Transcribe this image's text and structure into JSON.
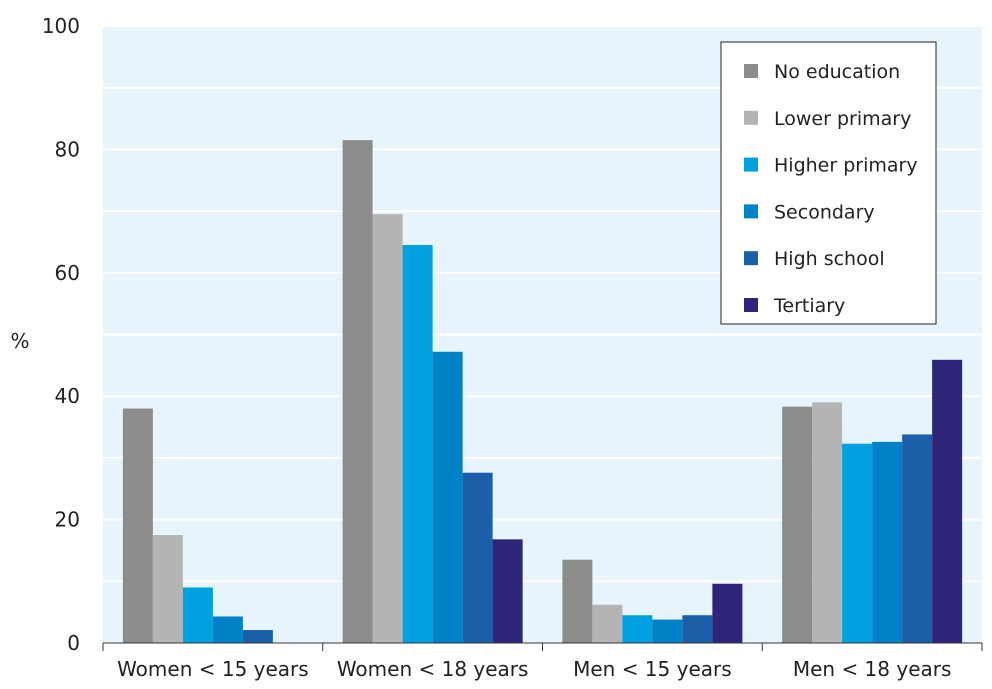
{
  "chart_data": {
    "type": "bar",
    "title": "",
    "xlabel": "",
    "ylabel": "%",
    "ylim": [
      0,
      100
    ],
    "yticks": [
      "0",
      "20",
      "40",
      "60",
      "80",
      "100"
    ],
    "grid": true,
    "legend_position": "top-right",
    "categories": [
      "Women < 15 years",
      "Women < 18 years",
      "Men < 15 years",
      "Men < 18 years"
    ],
    "series": [
      {
        "name": "No education",
        "color": "#8c8c8c",
        "values": [
          38,
          81.5,
          13.5,
          38.3
        ]
      },
      {
        "name": "Lower primary",
        "color": "#b4b4b4",
        "values": [
          17.5,
          69.5,
          6.2,
          39
        ]
      },
      {
        "name": "Higher primary",
        "color": "#00a0e0",
        "values": [
          9,
          64.5,
          4.5,
          32.3
        ]
      },
      {
        "name": "Secondary",
        "color": "#0082c8",
        "values": [
          4.3,
          47.2,
          3.8,
          32.6
        ]
      },
      {
        "name": "High school",
        "color": "#1a5fa8",
        "values": [
          2.1,
          27.6,
          4.5,
          33.8
        ]
      },
      {
        "name": "Tertiary",
        "color": "#2e2478",
        "values": [
          0,
          16.8,
          9.6,
          45.9
        ]
      }
    ]
  }
}
